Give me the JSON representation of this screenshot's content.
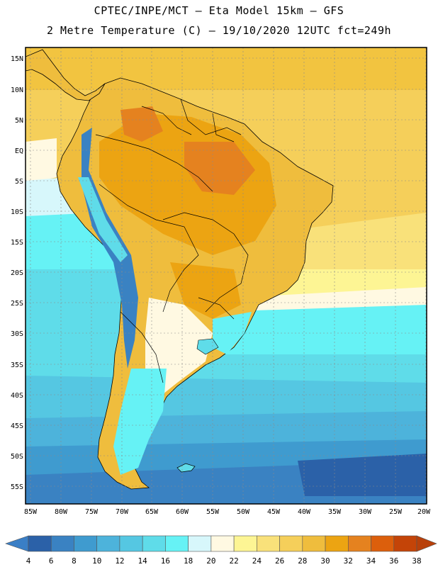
{
  "header": {
    "line1": "CPTEC/INPE/MCT –  Eta Model 15km – GFS",
    "line2": "2 Metre Temperature (C) – 19/10/2020 12UTC fct=249h"
  },
  "map": {
    "lat_labels": [
      "15N",
      "10N",
      "5N",
      "EQ",
      "5S",
      "10S",
      "15S",
      "20S",
      "25S",
      "30S",
      "35S",
      "40S",
      "45S",
      "50S",
      "55S"
    ],
    "lon_labels": [
      "85W",
      "80W",
      "75W",
      "70W",
      "65W",
      "60W",
      "55W",
      "50W",
      "45W",
      "40W",
      "35W",
      "30W",
      "25W",
      "20W"
    ]
  },
  "colorbar": {
    "ticks": [
      "4",
      "6",
      "8",
      "10",
      "12",
      "14",
      "16",
      "18",
      "20",
      "22",
      "24",
      "26",
      "28",
      "30",
      "32",
      "34",
      "36",
      "38"
    ],
    "low_color": "#3a7fc6",
    "high_color": "#b8400a",
    "colors": [
      "#2b61a8",
      "#3a82c2",
      "#3f9bcf",
      "#4db3db",
      "#55c7e2",
      "#5fdce9",
      "#66f2f5",
      "#d7f7fb",
      "#fff9e2",
      "#fdf594",
      "#f9e17a",
      "#f5cf5a",
      "#efbd3d",
      "#eca412",
      "#e5821f",
      "#dc5f0c",
      "#c44408"
    ]
  }
}
